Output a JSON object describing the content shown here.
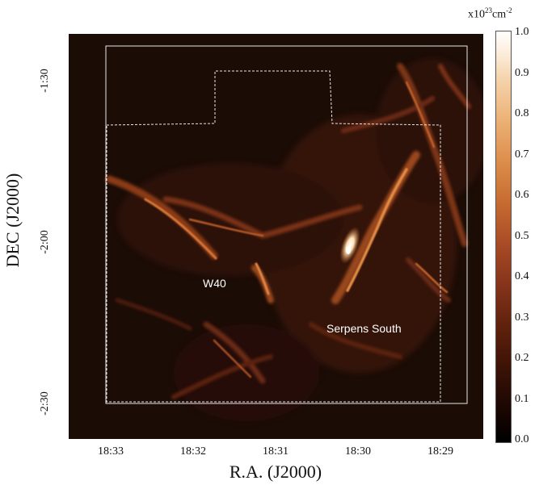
{
  "image": {
    "colorbar": {
      "unit_prefix": "x10",
      "unit_exp1": "23",
      "unit_mid": "cm",
      "unit_exp2": "-2",
      "ticks": [
        "1.0",
        "0.9",
        "0.8",
        "0.7",
        "0.6",
        "0.5",
        "0.4",
        "0.3",
        "0.2",
        "0.1",
        "0.0"
      ]
    },
    "axes": {
      "xlabel": "R.A. (J2000)",
      "ylabel": "DEC (J2000)",
      "ra_ticks": [
        "18:33",
        "18:32",
        "18:31",
        "18:30",
        "18:29"
      ],
      "dec_ticks": [
        "-1:30",
        "-2:00",
        "-2:30"
      ]
    },
    "labels": {
      "w40": "W40",
      "serpens_south": "Serpens South"
    }
  }
}
